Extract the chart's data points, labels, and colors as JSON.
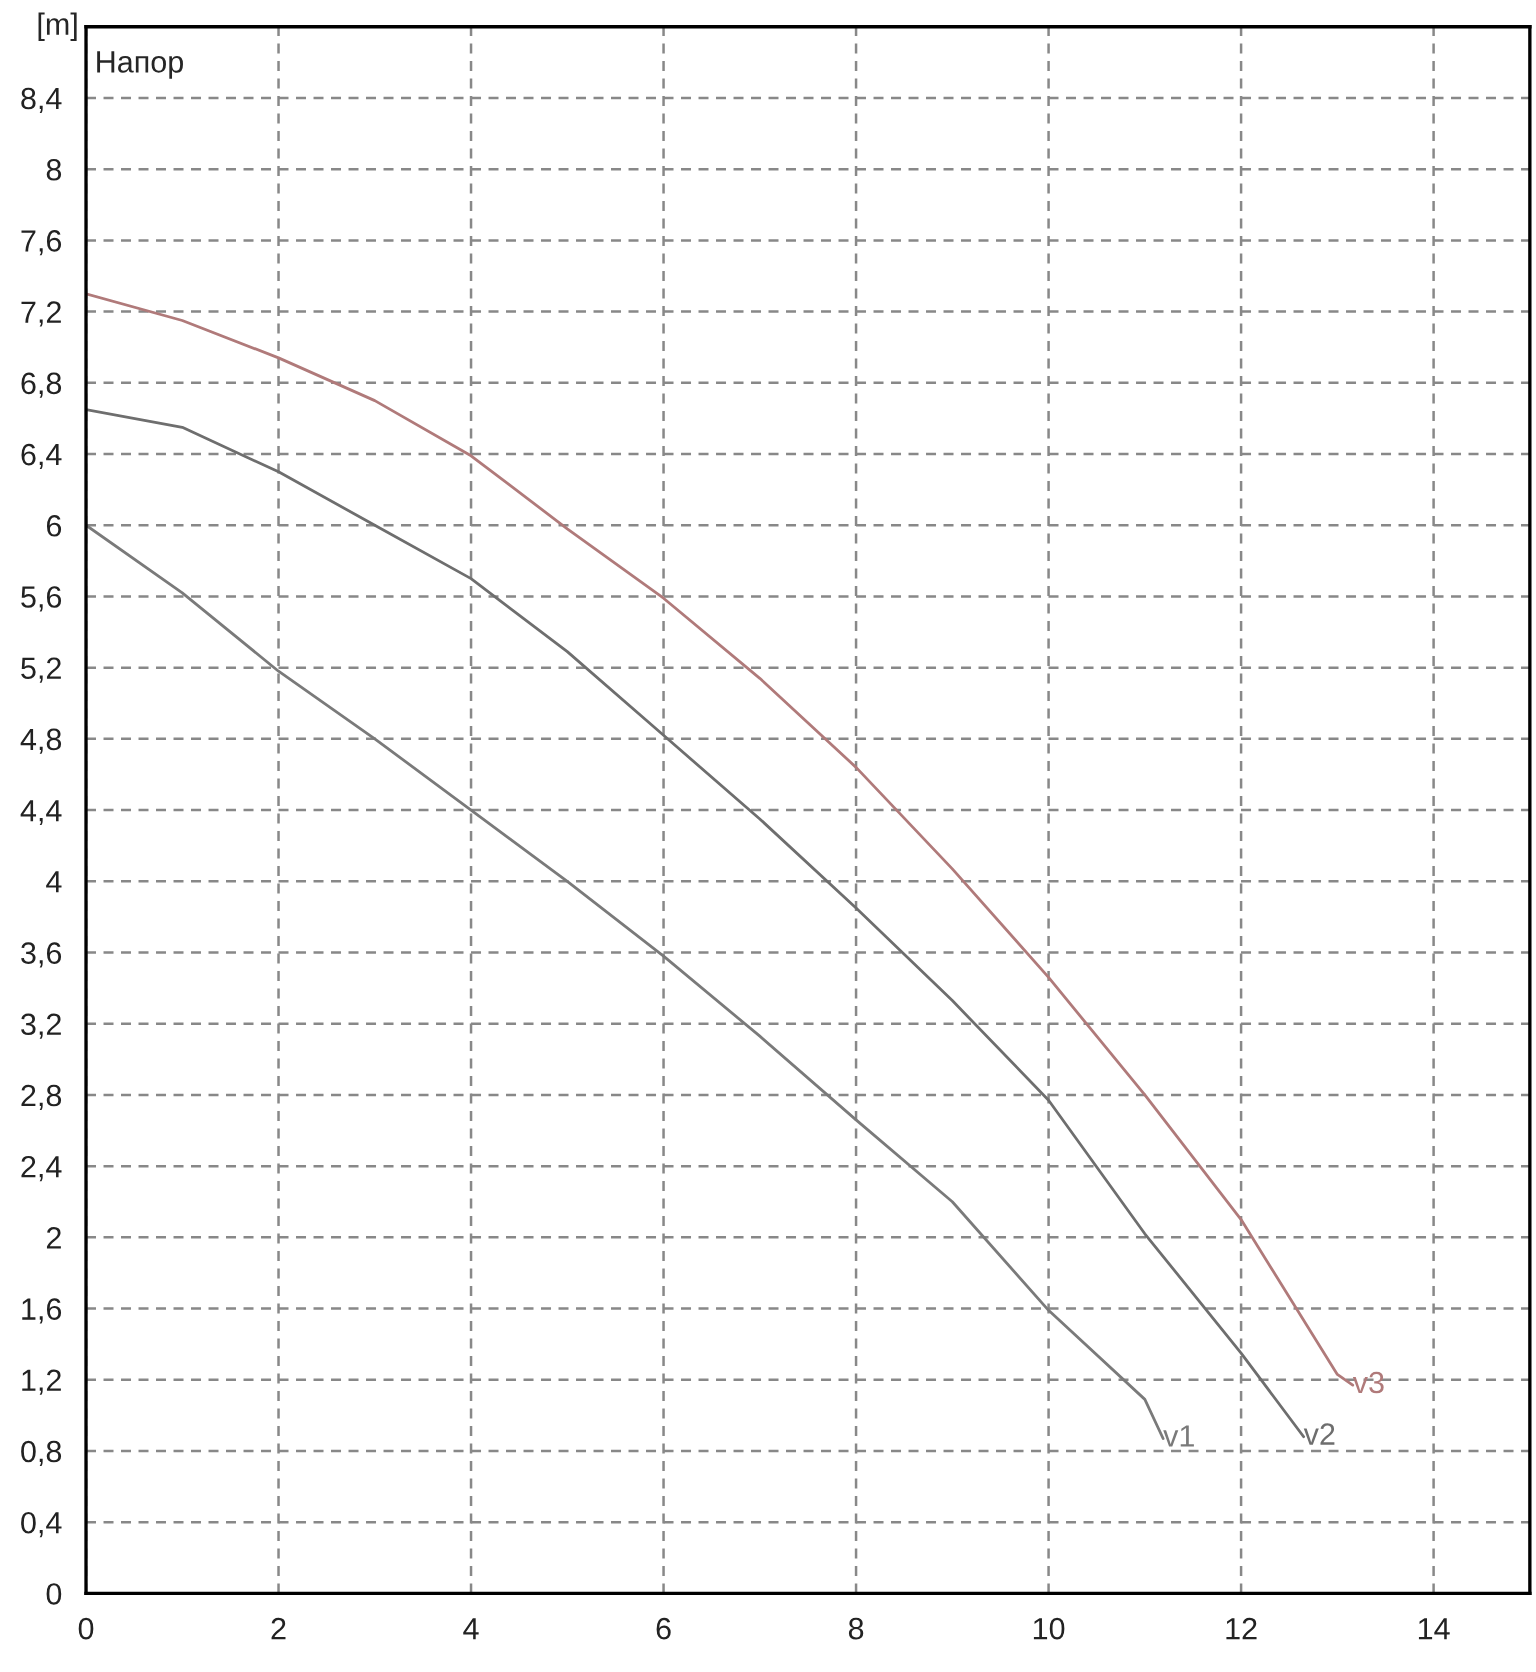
{
  "chart_data": {
    "type": "line",
    "ylabel": "[m]",
    "annotations": [
      "Напор"
    ],
    "series": [
      {
        "name": "v1",
        "color": "#7a7a7a",
        "x": [
          0,
          1,
          2,
          3,
          4,
          5,
          6,
          7,
          8,
          9,
          10,
          11,
          11.19
        ],
        "values": [
          6.0,
          5.62,
          5.18,
          4.8,
          4.4,
          4.0,
          3.58,
          3.13,
          2.66,
          2.2,
          1.59,
          1.09,
          0.87
        ]
      },
      {
        "name": "v2",
        "color": "#6e6e6e",
        "x": [
          0,
          1,
          2,
          3,
          4,
          5,
          6,
          7,
          8,
          9,
          10,
          11,
          12,
          12.65
        ],
        "values": [
          6.65,
          6.55,
          6.3,
          6.0,
          5.7,
          5.29,
          4.82,
          4.35,
          3.85,
          3.33,
          2.77,
          2.02,
          1.35,
          0.88
        ]
      },
      {
        "name": "v3",
        "color": "#b07a7a",
        "x": [
          0,
          1,
          2,
          3,
          4,
          5,
          6,
          7,
          8,
          9,
          10,
          11,
          12,
          13,
          13.16
        ],
        "values": [
          7.3,
          7.15,
          6.94,
          6.7,
          6.39,
          5.98,
          5.59,
          5.14,
          4.64,
          4.07,
          3.46,
          2.8,
          2.1,
          1.23,
          1.17
        ]
      }
    ],
    "xlim": [
      0,
      15
    ],
    "xticks": [
      0,
      2,
      4,
      6,
      8,
      10,
      12,
      14
    ],
    "ylim": [
      0,
      8.8
    ],
    "yticks": [
      0,
      {
        "value": 0.4,
        "label": "0,4"
      },
      {
        "value": 0.8,
        "label": "0,8"
      },
      {
        "value": 1.2,
        "label": "1,2"
      },
      {
        "value": 1.6,
        "label": "1,6"
      },
      2,
      {
        "value": 2.4,
        "label": "2,4"
      },
      {
        "value": 2.8,
        "label": "2,8"
      },
      {
        "value": 3.2,
        "label": "3,2"
      },
      {
        "value": 3.6,
        "label": "3,6"
      },
      4,
      {
        "value": 4.4,
        "label": "4,4"
      },
      {
        "value": 4.8,
        "label": "4,8"
      },
      {
        "value": 5.2,
        "label": "5,2"
      },
      {
        "value": 5.6,
        "label": "5,6"
      },
      6,
      {
        "value": 6.4,
        "label": "6,4"
      },
      {
        "value": 6.8,
        "label": "6,8"
      },
      {
        "value": 7.2,
        "label": "7,2"
      },
      {
        "value": 7.6,
        "label": "7,6"
      },
      8,
      {
        "value": 8.4,
        "label": "8,4"
      }
    ],
    "grid": true,
    "marker": "none",
    "line_style": "solid",
    "legend": false
  }
}
